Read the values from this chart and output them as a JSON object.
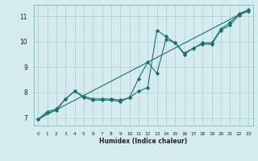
{
  "title": "",
  "xlabel": "Humidex (Indice chaleur)",
  "bg_color": "#d4ecee",
  "grid_color": "#aeccce",
  "line_color": "#1a7070",
  "xlim": [
    -0.5,
    23.5
  ],
  "ylim": [
    6.7,
    11.45
  ],
  "yticks": [
    7,
    8,
    9,
    10,
    11
  ],
  "xticks": [
    0,
    1,
    2,
    3,
    4,
    5,
    6,
    7,
    8,
    9,
    10,
    11,
    12,
    13,
    14,
    15,
    16,
    17,
    18,
    19,
    20,
    21,
    22,
    23
  ],
  "line1_x": [
    0,
    1,
    2,
    3,
    4,
    5,
    6,
    7,
    8,
    9,
    10,
    11,
    12,
    13,
    14,
    15,
    16,
    17,
    18,
    19,
    20,
    21,
    22,
    23
  ],
  "line1_y": [
    6.95,
    7.25,
    7.35,
    7.75,
    8.05,
    7.85,
    7.75,
    7.75,
    7.75,
    7.7,
    7.8,
    8.05,
    8.2,
    10.45,
    10.2,
    9.95,
    9.5,
    9.75,
    9.95,
    9.95,
    10.5,
    10.75,
    11.1,
    11.25
  ],
  "line2_x": [
    0,
    1,
    2,
    3,
    4,
    5,
    6,
    7,
    8,
    9,
    10,
    11,
    12,
    13,
    14,
    15,
    16,
    17,
    18,
    19,
    20,
    21,
    22,
    23
  ],
  "line2_y": [
    6.95,
    7.2,
    7.3,
    7.75,
    8.05,
    7.8,
    7.7,
    7.7,
    7.7,
    7.65,
    7.8,
    8.55,
    9.2,
    8.75,
    10.1,
    9.95,
    9.55,
    9.75,
    9.9,
    9.9,
    10.45,
    10.65,
    11.05,
    11.2
  ],
  "line3_x": [
    0,
    23
  ],
  "line3_y": [
    6.95,
    11.25
  ]
}
